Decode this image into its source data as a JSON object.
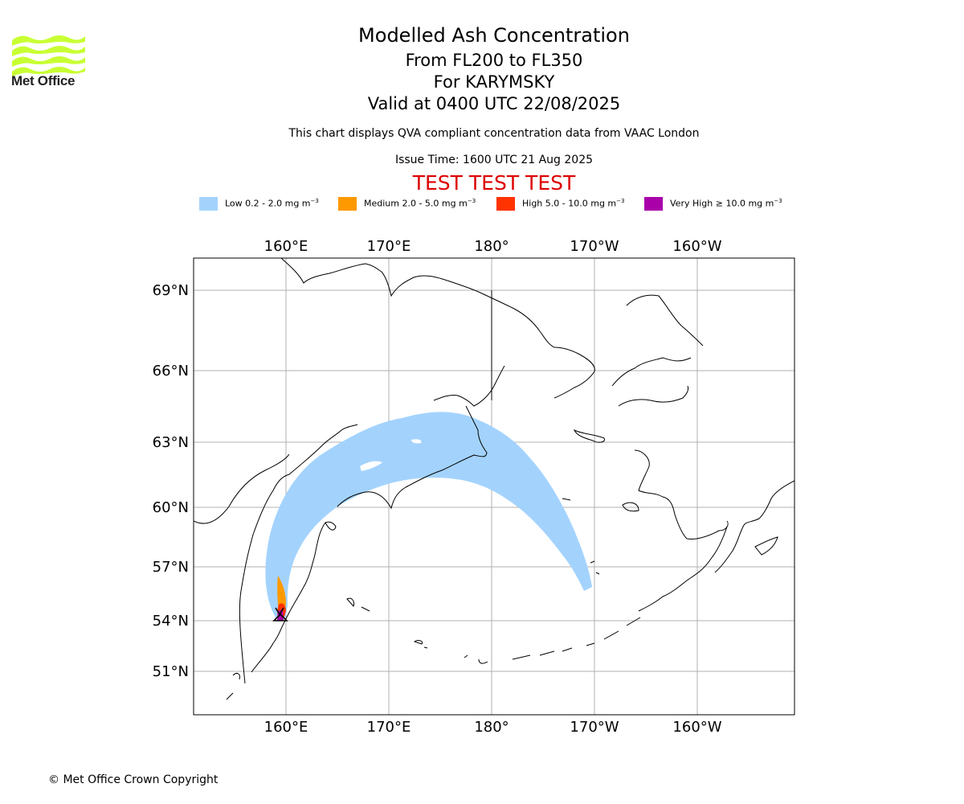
{
  "header": {
    "logo_text": "Met Office",
    "title": "Modelled Ash Concentration",
    "levels": "From FL200 to FL350",
    "volcano": "For KARYMSKY",
    "valid": "Valid at 0400 UTC 22/08/2025",
    "note": "This chart displays QVA compliant concentration data from VAAC London",
    "issue_time": "Issue Time: 1600 UTC 21 Aug 2025",
    "test_banner": "TEST TEST TEST"
  },
  "legend": [
    {
      "label": "Low 0.2 - 2.0 mg m",
      "color": "#a3d3fd"
    },
    {
      "label": "Medium 2.0 - 5.0 mg m",
      "color": "#ff9900"
    },
    {
      "label": "High 5.0 - 10.0 mg m",
      "color": "#ff3300"
    },
    {
      "label": "Very High ≥ 10.0 mg m",
      "color": "#aa00aa"
    }
  ],
  "legend_unit_exponent": "−3",
  "map": {
    "lon_labels": [
      "160°E",
      "170°E",
      "180°",
      "170°W",
      "160°W"
    ],
    "lat_labels": [
      "69°N",
      "66°N",
      "63°N",
      "60°N",
      "57°N",
      "54°N",
      "51°N"
    ],
    "gridlines": true,
    "volcano_icon": "volcano-triangle-icon"
  },
  "footer": {
    "copyright": "© Met Office Crown Copyright"
  }
}
